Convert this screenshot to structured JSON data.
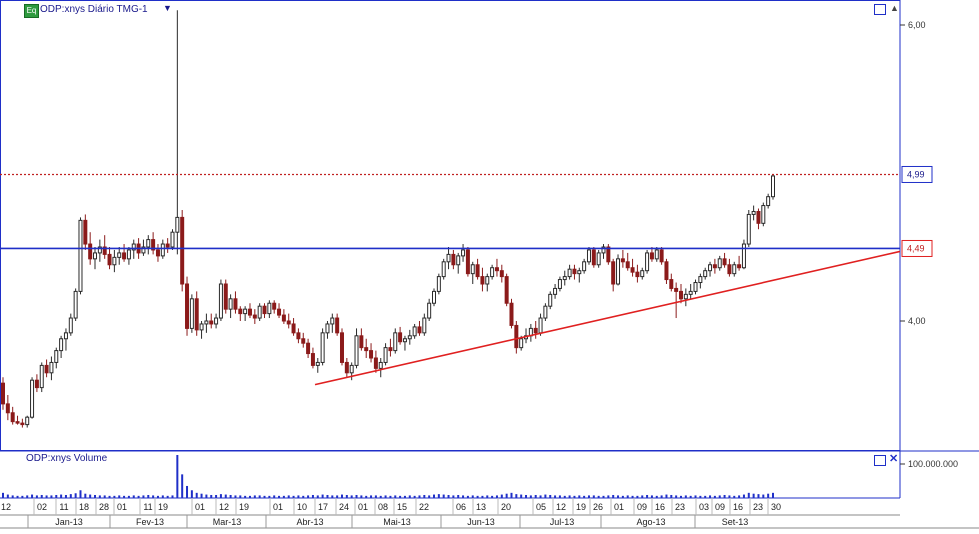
{
  "header": {
    "badge": "Eq",
    "title": "ODP:xnys Diário TMG-1",
    "dropdown_icon": "caret-down-icon",
    "sort_icon": "triangle-up-icon"
  },
  "volume_panel": {
    "title": "ODP:xnys Volume",
    "close_icon": "close-icon",
    "maximize_icon": "window-icon"
  },
  "colors": {
    "up": "#2a2a2a",
    "down": "#8b1a1a",
    "resistance": "#1f2fc8",
    "support": "#e02020",
    "last_price": "#c02020",
    "volume": "#1f2fc8"
  },
  "chart_data": {
    "type": "candlestick",
    "y_ticks": [
      "6,00",
      "4,00"
    ],
    "y_tick_values": [
      6.0,
      4.0
    ],
    "price_labels": [
      {
        "text": "4,99",
        "value": 4.99,
        "style": "last"
      },
      {
        "text": "4,49",
        "value": 4.49,
        "style": "level"
      }
    ],
    "volume_ticks": [
      "100.000.000"
    ],
    "x_day_labels": [
      "12",
      "02",
      "11",
      "18",
      "28",
      "01",
      "11",
      "19",
      "01",
      "12",
      "19",
      "01",
      "10",
      "17",
      "24",
      "01",
      "08",
      "15",
      "22",
      "06",
      "13",
      "20",
      "05",
      "12",
      "19",
      "26",
      "01",
      "09",
      "16",
      "23",
      "03",
      "09",
      "16",
      "23",
      "30"
    ],
    "x_month_labels": [
      "Jan-13",
      "Fev-13",
      "Mar-13",
      "Abr-13",
      "Mai-13",
      "Jun-13",
      "Jul-13",
      "Ago-13",
      "Set-13"
    ],
    "lines": [
      {
        "name": "resistance",
        "kind": "horizontal",
        "value": 4.49
      },
      {
        "name": "last-price",
        "kind": "horizontal",
        "value": 4.99
      },
      {
        "name": "support",
        "kind": "trend",
        "from": [
          "Abr-13 16",
          3.57
        ],
        "to": [
          "Set-13 30+",
          4.47
        ]
      }
    ],
    "candles_note": "approximate daily OHLC series (open, high, low, close) read from chart",
    "candles": [
      [
        3.58,
        3.62,
        3.4,
        3.44
      ],
      [
        3.44,
        3.5,
        3.33,
        3.38
      ],
      [
        3.38,
        3.42,
        3.3,
        3.32
      ],
      [
        3.32,
        3.36,
        3.3,
        3.31
      ],
      [
        3.31,
        3.34,
        3.28,
        3.3
      ],
      [
        3.3,
        3.36,
        3.28,
        3.35
      ],
      [
        3.35,
        3.62,
        3.34,
        3.6
      ],
      [
        3.6,
        3.64,
        3.52,
        3.55
      ],
      [
        3.55,
        3.72,
        3.52,
        3.7
      ],
      [
        3.7,
        3.74,
        3.62,
        3.65
      ],
      [
        3.65,
        3.76,
        3.6,
        3.72
      ],
      [
        3.72,
        3.82,
        3.68,
        3.8
      ],
      [
        3.8,
        3.9,
        3.75,
        3.88
      ],
      [
        3.88,
        3.95,
        3.8,
        3.92
      ],
      [
        3.92,
        4.05,
        3.9,
        4.02
      ],
      [
        4.02,
        4.22,
        4.0,
        4.2
      ],
      [
        4.2,
        4.7,
        4.18,
        4.68
      ],
      [
        4.68,
        4.72,
        4.48,
        4.52
      ],
      [
        4.52,
        4.6,
        4.38,
        4.42
      ],
      [
        4.42,
        4.5,
        4.35,
        4.46
      ],
      [
        4.46,
        4.55,
        4.4,
        4.5
      ],
      [
        4.5,
        4.58,
        4.42,
        4.45
      ],
      [
        4.45,
        4.5,
        4.35,
        4.38
      ],
      [
        4.38,
        4.48,
        4.33,
        4.43
      ],
      [
        4.43,
        4.5,
        4.38,
        4.46
      ],
      [
        4.46,
        4.52,
        4.4,
        4.42
      ],
      [
        4.42,
        4.5,
        4.38,
        4.48
      ],
      [
        4.48,
        4.55,
        4.42,
        4.52
      ],
      [
        4.52,
        4.56,
        4.42,
        4.46
      ],
      [
        4.46,
        4.55,
        4.44,
        4.5
      ],
      [
        4.5,
        4.58,
        4.45,
        4.55
      ],
      [
        4.55,
        4.6,
        4.45,
        4.48
      ],
      [
        4.48,
        4.52,
        4.4,
        4.44
      ],
      [
        4.44,
        4.55,
        4.42,
        4.52
      ],
      [
        4.52,
        4.56,
        4.46,
        4.5
      ],
      [
        4.5,
        4.62,
        4.48,
        4.6
      ],
      [
        4.6,
        6.1,
        4.45,
        4.7
      ],
      [
        4.7,
        4.75,
        4.2,
        4.25
      ],
      [
        4.25,
        4.3,
        3.9,
        3.95
      ],
      [
        3.95,
        4.18,
        3.92,
        4.15
      ],
      [
        4.15,
        4.2,
        3.9,
        3.94
      ],
      [
        3.94,
        4.0,
        3.88,
        3.98
      ],
      [
        3.98,
        4.05,
        3.92,
        4.0
      ],
      [
        4.0,
        4.05,
        3.95,
        3.98
      ],
      [
        3.98,
        4.05,
        3.95,
        4.02
      ],
      [
        4.02,
        4.28,
        4.0,
        4.25
      ],
      [
        4.25,
        4.28,
        4.05,
        4.08
      ],
      [
        4.08,
        4.18,
        4.02,
        4.15
      ],
      [
        4.15,
        4.2,
        4.05,
        4.08
      ],
      [
        4.08,
        4.1,
        4.0,
        4.05
      ],
      [
        4.05,
        4.1,
        4.0,
        4.08
      ],
      [
        4.08,
        4.12,
        4.02,
        4.04
      ],
      [
        4.04,
        4.08,
        3.98,
        4.02
      ],
      [
        4.02,
        4.12,
        4.0,
        4.1
      ],
      [
        4.1,
        4.12,
        4.02,
        4.05
      ],
      [
        4.05,
        4.14,
        4.02,
        4.12
      ],
      [
        4.12,
        4.14,
        4.05,
        4.08
      ],
      [
        4.08,
        4.12,
        4.02,
        4.04
      ],
      [
        4.04,
        4.08,
        3.98,
        4.0
      ],
      [
        4.0,
        4.05,
        3.95,
        3.98
      ],
      [
        3.98,
        4.02,
        3.9,
        3.92
      ],
      [
        3.92,
        3.95,
        3.85,
        3.88
      ],
      [
        3.88,
        3.92,
        3.82,
        3.85
      ],
      [
        3.85,
        3.88,
        3.75,
        3.78
      ],
      [
        3.78,
        3.82,
        3.68,
        3.7
      ],
      [
        3.7,
        3.75,
        3.65,
        3.72
      ],
      [
        3.72,
        3.95,
        3.7,
        3.92
      ],
      [
        3.92,
        4.0,
        3.88,
        3.98
      ],
      [
        3.98,
        4.05,
        3.92,
        4.02
      ],
      [
        4.02,
        4.05,
        3.9,
        3.92
      ],
      [
        3.92,
        3.95,
        3.7,
        3.72
      ],
      [
        3.72,
        3.75,
        3.62,
        3.65
      ],
      [
        3.65,
        3.72,
        3.6,
        3.7
      ],
      [
        3.7,
        3.95,
        3.68,
        3.9
      ],
      [
        3.9,
        3.95,
        3.8,
        3.82
      ],
      [
        3.82,
        3.88,
        3.75,
        3.8
      ],
      [
        3.8,
        3.85,
        3.72,
        3.75
      ],
      [
        3.75,
        3.8,
        3.65,
        3.68
      ],
      [
        3.68,
        3.75,
        3.62,
        3.72
      ],
      [
        3.72,
        3.85,
        3.7,
        3.82
      ],
      [
        3.82,
        3.88,
        3.76,
        3.8
      ],
      [
        3.8,
        3.95,
        3.78,
        3.92
      ],
      [
        3.92,
        3.96,
        3.84,
        3.86
      ],
      [
        3.86,
        3.9,
        3.8,
        3.88
      ],
      [
        3.88,
        3.94,
        3.84,
        3.9
      ],
      [
        3.9,
        3.98,
        3.88,
        3.96
      ],
      [
        3.96,
        4.0,
        3.9,
        3.92
      ],
      [
        3.92,
        4.05,
        3.9,
        4.02
      ],
      [
        4.02,
        4.15,
        4.0,
        4.12
      ],
      [
        4.12,
        4.22,
        4.1,
        4.2
      ],
      [
        4.2,
        4.32,
        4.18,
        4.3
      ],
      [
        4.3,
        4.42,
        4.28,
        4.4
      ],
      [
        4.4,
        4.5,
        4.35,
        4.45
      ],
      [
        4.45,
        4.48,
        4.35,
        4.38
      ],
      [
        4.38,
        4.46,
        4.32,
        4.44
      ],
      [
        4.44,
        4.52,
        4.4,
        4.48
      ],
      [
        4.48,
        4.5,
        4.3,
        4.32
      ],
      [
        4.32,
        4.4,
        4.25,
        4.38
      ],
      [
        4.38,
        4.42,
        4.28,
        4.3
      ],
      [
        4.3,
        4.36,
        4.2,
        4.25
      ],
      [
        4.25,
        4.32,
        4.2,
        4.3
      ],
      [
        4.3,
        4.38,
        4.28,
        4.36
      ],
      [
        4.36,
        4.42,
        4.3,
        4.34
      ],
      [
        4.34,
        4.38,
        4.26,
        4.3
      ],
      [
        4.3,
        4.32,
        4.1,
        4.12
      ],
      [
        4.12,
        4.15,
        3.95,
        3.97
      ],
      [
        3.97,
        4.0,
        3.78,
        3.82
      ],
      [
        3.82,
        3.9,
        3.8,
        3.88
      ],
      [
        3.88,
        3.95,
        3.85,
        3.9
      ],
      [
        3.9,
        3.98,
        3.86,
        3.95
      ],
      [
        3.95,
        4.0,
        3.88,
        3.92
      ],
      [
        3.92,
        4.05,
        3.9,
        4.02
      ],
      [
        4.02,
        4.12,
        4.0,
        4.1
      ],
      [
        4.1,
        4.2,
        4.08,
        4.18
      ],
      [
        4.18,
        4.25,
        4.15,
        4.22
      ],
      [
        4.22,
        4.3,
        4.2,
        4.28
      ],
      [
        4.28,
        4.34,
        4.24,
        4.3
      ],
      [
        4.3,
        4.38,
        4.28,
        4.35
      ],
      [
        4.35,
        4.38,
        4.28,
        4.32
      ],
      [
        4.32,
        4.36,
        4.26,
        4.34
      ],
      [
        4.34,
        4.42,
        4.32,
        4.4
      ],
      [
        4.4,
        4.5,
        4.38,
        4.48
      ],
      [
        4.48,
        4.5,
        4.36,
        4.38
      ],
      [
        4.38,
        4.48,
        4.36,
        4.46
      ],
      [
        4.46,
        4.52,
        4.42,
        4.5
      ],
      [
        4.5,
        4.52,
        4.38,
        4.4
      ],
      [
        4.4,
        4.42,
        4.2,
        4.25
      ],
      [
        4.25,
        4.45,
        4.24,
        4.42
      ],
      [
        4.42,
        4.48,
        4.36,
        4.4
      ],
      [
        4.4,
        4.46,
        4.34,
        4.36
      ],
      [
        4.36,
        4.42,
        4.3,
        4.33
      ],
      [
        4.33,
        4.38,
        4.26,
        4.3
      ],
      [
        4.3,
        4.36,
        4.28,
        4.34
      ],
      [
        4.34,
        4.48,
        4.32,
        4.46
      ],
      [
        4.46,
        4.5,
        4.4,
        4.42
      ],
      [
        4.42,
        4.5,
        4.4,
        4.48
      ],
      [
        4.48,
        4.5,
        4.38,
        4.4
      ],
      [
        4.4,
        4.42,
        4.25,
        4.28
      ],
      [
        4.28,
        4.32,
        4.2,
        4.22
      ],
      [
        4.22,
        4.26,
        4.02,
        4.2
      ],
      [
        4.2,
        4.25,
        4.12,
        4.15
      ],
      [
        4.15,
        4.22,
        4.1,
        4.18
      ],
      [
        4.18,
        4.25,
        4.15,
        4.2
      ],
      [
        4.2,
        4.28,
        4.18,
        4.26
      ],
      [
        4.26,
        4.32,
        4.22,
        4.3
      ],
      [
        4.3,
        4.36,
        4.28,
        4.34
      ],
      [
        4.34,
        4.4,
        4.3,
        4.38
      ],
      [
        4.38,
        4.42,
        4.32,
        4.36
      ],
      [
        4.36,
        4.44,
        4.34,
        4.42
      ],
      [
        4.42,
        4.46,
        4.36,
        4.38
      ],
      [
        4.38,
        4.42,
        4.3,
        4.32
      ],
      [
        4.32,
        4.4,
        4.3,
        4.38
      ],
      [
        4.38,
        4.44,
        4.34,
        4.36
      ],
      [
        4.36,
        4.55,
        4.35,
        4.52
      ],
      [
        4.52,
        4.75,
        4.5,
        4.72
      ],
      [
        4.72,
        4.78,
        4.68,
        4.74
      ],
      [
        4.74,
        4.76,
        4.62,
        4.66
      ],
      [
        4.66,
        4.8,
        4.64,
        4.78
      ],
      [
        4.78,
        4.86,
        4.76,
        4.84
      ],
      [
        4.84,
        4.99,
        4.82,
        4.98
      ]
    ],
    "volume_rel": [
      0.12,
      0.08,
      0.06,
      0.05,
      0.05,
      0.06,
      0.08,
      0.06,
      0.07,
      0.06,
      0.06,
      0.07,
      0.08,
      0.07,
      0.09,
      0.11,
      0.18,
      0.1,
      0.08,
      0.07,
      0.06,
      0.06,
      0.05,
      0.05,
      0.06,
      0.05,
      0.05,
      0.06,
      0.05,
      0.06,
      0.07,
      0.06,
      0.05,
      0.06,
      0.05,
      0.06,
      1.0,
      0.55,
      0.28,
      0.18,
      0.12,
      0.1,
      0.08,
      0.07,
      0.07,
      0.09,
      0.08,
      0.07,
      0.06,
      0.06,
      0.05,
      0.05,
      0.06,
      0.06,
      0.05,
      0.05,
      0.06,
      0.05,
      0.05,
      0.06,
      0.05,
      0.06,
      0.05,
      0.06,
      0.07,
      0.06,
      0.08,
      0.07,
      0.06,
      0.06,
      0.08,
      0.07,
      0.06,
      0.07,
      0.06,
      0.05,
      0.06,
      0.06,
      0.05,
      0.06,
      0.05,
      0.06,
      0.05,
      0.05,
      0.06,
      0.05,
      0.06,
      0.07,
      0.06,
      0.08,
      0.09,
      0.08,
      0.07,
      0.06,
      0.07,
      0.06,
      0.05,
      0.06,
      0.05,
      0.05,
      0.06,
      0.05,
      0.06,
      0.08,
      0.1,
      0.12,
      0.09,
      0.08,
      0.07,
      0.06,
      0.07,
      0.06,
      0.08,
      0.07,
      0.06,
      0.06,
      0.05,
      0.06,
      0.05,
      0.06,
      0.05,
      0.06,
      0.06,
      0.05,
      0.05,
      0.06,
      0.07,
      0.06,
      0.05,
      0.06,
      0.05,
      0.05,
      0.06,
      0.07,
      0.06,
      0.05,
      0.06,
      0.08,
      0.07,
      0.06,
      0.05,
      0.06,
      0.05,
      0.06,
      0.05,
      0.05,
      0.06,
      0.05,
      0.06,
      0.07,
      0.06,
      0.05,
      0.06,
      0.08,
      0.12,
      0.1,
      0.09,
      0.08,
      0.1,
      0.12
    ]
  }
}
